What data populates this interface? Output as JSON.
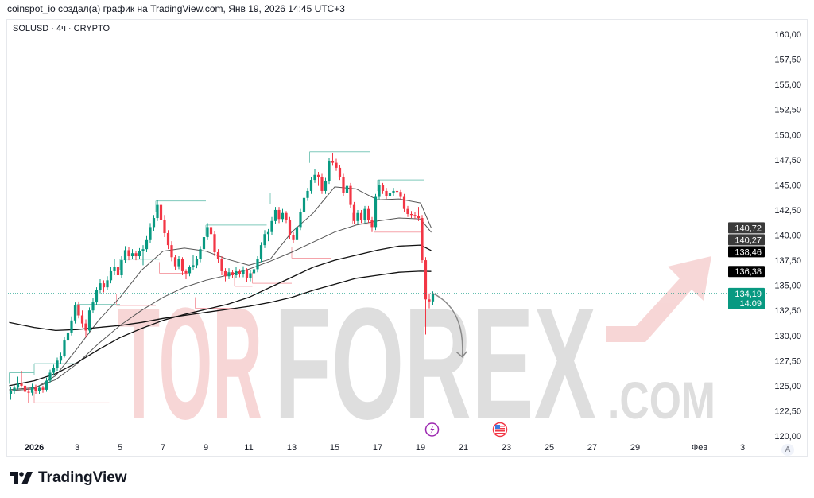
{
  "header": {
    "attribution": "coinspot_io создал(а) график на TradingView.com, Янв 19, 2026 14:45 UTC+3"
  },
  "symbol": {
    "label": "SOLUSD · 4ч · CRYPTO"
  },
  "footer": {
    "logo_text": "TradingView"
  },
  "auto_scale_button": "A",
  "watermark": {
    "text_a": "TOR",
    "text_b": "FOREX",
    ".com": ".COM",
    "color_a": "#f6d0d0",
    "color_b": "#d9d9d9"
  },
  "colors": {
    "up": "#089981",
    "down": "#f23645",
    "ma_fast": "#555555",
    "ma_slow": "#111111",
    "last_price": "#089981",
    "pivot_high": "#7fc9bb",
    "pivot_low": "#f5a3aa"
  },
  "chart_data": {
    "type": "candlestick",
    "interval": "4h",
    "first_candle": "2025-12-30T20:00",
    "ylim": [
      120,
      160
    ],
    "y_ticks": [
      "160,00",
      "157,50",
      "155,00",
      "152,50",
      "150,00",
      "147,50",
      "145,00",
      "142,50",
      "140,00",
      "137,50",
      "135,00",
      "132,50",
      "130,00",
      "127,50",
      "125,00",
      "122,50",
      "120,00"
    ],
    "x_ticks": [
      {
        "date": "2026-01-01",
        "label": "2026"
      },
      {
        "date": "2026-01-03",
        "label": "3"
      },
      {
        "date": "2026-01-05",
        "label": "5"
      },
      {
        "date": "2026-01-07",
        "label": "7"
      },
      {
        "date": "2026-01-09",
        "label": "9"
      },
      {
        "date": "2026-01-11",
        "label": "11"
      },
      {
        "date": "2026-01-13",
        "label": "13"
      },
      {
        "date": "2026-01-15",
        "label": "15"
      },
      {
        "date": "2026-01-17",
        "label": "17"
      },
      {
        "date": "2026-01-19",
        "label": "19"
      },
      {
        "date": "2026-01-21",
        "label": "21"
      },
      {
        "date": "2026-01-23",
        "label": "23"
      },
      {
        "date": "2026-01-25",
        "label": "25"
      },
      {
        "date": "2026-01-27",
        "label": "27"
      },
      {
        "date": "2026-01-29",
        "label": "29"
      },
      {
        "date": "2026-02-01",
        "label": "Фев"
      },
      {
        "date": "2026-02-03",
        "label": "3"
      }
    ],
    "ohlc": [
      [
        124.2,
        124.9,
        123.6,
        124.5
      ],
      [
        124.5,
        125.1,
        124.2,
        124.8
      ],
      [
        124.8,
        125.9,
        124.6,
        125.2
      ],
      [
        125.2,
        126.5,
        124.8,
        125.0
      ],
      [
        125.0,
        125.3,
        124.1,
        124.4
      ],
      [
        124.4,
        124.8,
        123.3,
        124.3
      ],
      [
        124.3,
        125.2,
        124.0,
        124.9
      ],
      [
        124.9,
        125.1,
        124.2,
        124.5
      ],
      [
        124.5,
        125.0,
        124.2,
        124.8
      ],
      [
        124.8,
        125.0,
        124.3,
        124.6
      ],
      [
        124.6,
        125.8,
        124.4,
        125.5
      ],
      [
        125.5,
        126.6,
        125.3,
        126.3
      ],
      [
        126.3,
        127.1,
        126.0,
        126.8
      ],
      [
        126.8,
        127.8,
        126.5,
        127.5
      ],
      [
        127.5,
        128.3,
        127.2,
        128.0
      ],
      [
        128.0,
        129.9,
        127.8,
        129.5
      ],
      [
        129.5,
        130.7,
        129.1,
        130.3
      ],
      [
        130.3,
        131.9,
        130.0,
        131.5
      ],
      [
        131.5,
        133.3,
        131.2,
        133.0
      ],
      [
        133.0,
        133.4,
        131.7,
        132.0
      ],
      [
        132.0,
        132.5,
        130.8,
        131.2
      ],
      [
        131.2,
        131.6,
        129.8,
        130.5
      ],
      [
        130.5,
        132.8,
        130.2,
        132.5
      ],
      [
        132.5,
        133.7,
        132.2,
        133.3
      ],
      [
        133.3,
        134.8,
        133.0,
        134.5
      ],
      [
        134.5,
        135.6,
        134.2,
        135.2
      ],
      [
        135.2,
        135.5,
        134.3,
        134.8
      ],
      [
        134.8,
        135.9,
        134.5,
        135.5
      ],
      [
        135.5,
        136.8,
        135.2,
        136.4
      ],
      [
        136.4,
        137.6,
        136.0,
        136.8
      ],
      [
        136.8,
        137.0,
        135.4,
        136.0
      ],
      [
        136.0,
        137.9,
        135.7,
        137.5
      ],
      [
        137.5,
        138.9,
        137.2,
        138.5
      ],
      [
        138.5,
        138.8,
        137.5,
        137.9
      ],
      [
        137.9,
        138.6,
        137.6,
        138.2
      ],
      [
        138.2,
        138.4,
        137.5,
        137.9
      ],
      [
        137.9,
        138.7,
        137.6,
        138.4
      ],
      [
        138.4,
        139.0,
        137.0,
        138.6
      ],
      [
        138.6,
        139.9,
        138.3,
        139.5
      ],
      [
        139.5,
        141.2,
        139.2,
        140.8
      ],
      [
        140.8,
        142.0,
        140.4,
        141.7
      ],
      [
        141.7,
        143.5,
        141.4,
        143.0
      ],
      [
        143.0,
        143.3,
        141.0,
        141.5
      ],
      [
        141.5,
        142.0,
        139.8,
        140.2
      ],
      [
        140.2,
        140.5,
        138.6,
        139.0
      ],
      [
        139.0,
        139.4,
        137.4,
        137.8
      ],
      [
        137.8,
        138.0,
        136.5,
        136.9
      ],
      [
        136.9,
        137.9,
        136.6,
        137.6
      ],
      [
        137.6,
        137.8,
        136.0,
        136.4
      ],
      [
        136.4,
        136.6,
        135.6,
        136.2
      ],
      [
        136.2,
        137.0,
        135.9,
        136.8
      ],
      [
        136.8,
        138.0,
        136.5,
        137.0
      ],
      [
        137.0,
        137.9,
        136.7,
        137.6
      ],
      [
        137.6,
        138.9,
        137.3,
        138.6
      ],
      [
        138.6,
        140.1,
        138.3,
        139.8
      ],
      [
        139.8,
        141.2,
        139.5,
        140.8
      ],
      [
        140.8,
        141.0,
        139.7,
        140.1
      ],
      [
        140.1,
        140.4,
        137.9,
        138.3
      ],
      [
        138.3,
        138.6,
        137.2,
        137.6
      ],
      [
        137.6,
        137.9,
        136.0,
        136.4
      ],
      [
        136.4,
        136.7,
        135.4,
        135.9
      ],
      [
        135.9,
        136.7,
        135.6,
        136.3
      ],
      [
        136.3,
        136.5,
        135.7,
        136.0
      ],
      [
        136.0,
        136.8,
        135.7,
        136.4
      ],
      [
        136.4,
        136.6,
        135.8,
        136.1
      ],
      [
        136.1,
        136.9,
        135.8,
        136.5
      ],
      [
        136.5,
        136.7,
        135.3,
        135.7
      ],
      [
        135.7,
        136.5,
        135.4,
        136.2
      ],
      [
        136.2,
        136.9,
        135.9,
        136.6
      ],
      [
        136.6,
        137.9,
        136.3,
        137.6
      ],
      [
        137.6,
        139.3,
        137.3,
        139.0
      ],
      [
        139.0,
        140.5,
        138.7,
        140.1
      ],
      [
        140.1,
        140.6,
        139.4,
        140.3
      ],
      [
        140.3,
        141.8,
        140.0,
        141.4
      ],
      [
        141.4,
        142.8,
        141.1,
        142.5
      ],
      [
        142.5,
        142.8,
        141.2,
        141.6
      ],
      [
        141.6,
        142.6,
        141.3,
        142.2
      ],
      [
        142.2,
        142.4,
        141.2,
        141.5
      ],
      [
        141.5,
        141.8,
        139.6,
        140.0
      ],
      [
        140.0,
        140.3,
        139.2,
        139.5
      ],
      [
        139.5,
        141.1,
        139.2,
        140.8
      ],
      [
        140.8,
        142.6,
        140.5,
        142.3
      ],
      [
        142.3,
        144.0,
        142.0,
        143.7
      ],
      [
        143.7,
        144.7,
        143.4,
        144.4
      ],
      [
        144.4,
        145.8,
        144.1,
        145.5
      ],
      [
        145.5,
        146.6,
        145.2,
        146.0
      ],
      [
        146.0,
        146.3,
        144.9,
        145.8
      ],
      [
        145.8,
        146.1,
        144.1,
        144.4
      ],
      [
        144.4,
        145.7,
        144.1,
        145.4
      ],
      [
        145.4,
        147.7,
        145.1,
        147.4
      ],
      [
        147.4,
        148.2,
        146.9,
        147.2
      ],
      [
        147.2,
        147.6,
        146.4,
        146.7
      ],
      [
        146.7,
        147.0,
        145.5,
        145.8
      ],
      [
        145.8,
        146.1,
        143.9,
        144.2
      ],
      [
        144.2,
        145.3,
        143.9,
        144.9
      ],
      [
        144.9,
        145.2,
        142.7,
        143.0
      ],
      [
        143.0,
        143.3,
        141.1,
        141.4
      ],
      [
        141.4,
        142.5,
        141.1,
        142.2
      ],
      [
        142.2,
        142.5,
        141.2,
        141.5
      ],
      [
        141.5,
        142.9,
        141.2,
        142.6
      ],
      [
        142.6,
        142.9,
        141.2,
        141.5
      ],
      [
        141.5,
        141.8,
        140.3,
        140.8
      ],
      [
        140.8,
        144.1,
        140.5,
        143.8
      ],
      [
        143.8,
        145.5,
        143.5,
        145.0
      ],
      [
        145.0,
        145.2,
        144.1,
        144.4
      ],
      [
        144.4,
        144.7,
        143.6,
        143.9
      ],
      [
        143.9,
        144.5,
        143.6,
        144.2
      ],
      [
        144.2,
        144.7,
        143.9,
        144.4
      ],
      [
        144.4,
        144.6,
        144.0,
        144.3
      ],
      [
        144.3,
        144.5,
        143.5,
        143.8
      ],
      [
        143.8,
        144.1,
        142.3,
        142.6
      ],
      [
        142.6,
        142.9,
        141.8,
        142.1
      ],
      [
        142.1,
        142.4,
        141.7,
        142.0
      ],
      [
        142.0,
        142.3,
        141.6,
        141.9
      ],
      [
        141.9,
        142.8,
        141.4,
        141.7
      ],
      [
        141.7,
        142.0,
        137.2,
        137.5
      ],
      [
        137.5,
        137.8,
        130.1,
        133.6
      ],
      [
        133.6,
        134.2,
        132.7,
        133.4
      ],
      [
        133.4,
        134.4,
        133.0,
        134.19
      ]
    ],
    "ma_dates": [
      "2025-12-30T20:00",
      "2026-01-01",
      "2026-01-02",
      "2026-01-03",
      "2026-01-04",
      "2026-01-05",
      "2026-01-06",
      "2026-01-07",
      "2026-01-08",
      "2026-01-09",
      "2026-01-10",
      "2026-01-11",
      "2026-01-12",
      "2026-01-13",
      "2026-01-14",
      "2026-01-15",
      "2026-01-16",
      "2026-01-17",
      "2026-01-18",
      "2026-01-19",
      "2026-01-19T12:00"
    ],
    "moving_averages": [
      {
        "color": "#555555",
        "last": "140,72",
        "values": [
          124.5,
          124.7,
          126.0,
          128.7,
          131.5,
          133.8,
          136.5,
          138.4,
          138.7,
          138.4,
          137.6,
          137.0,
          137.6,
          140.3,
          142.2,
          144.8,
          144.6,
          143.5,
          143.6,
          143.2,
          140.72
        ]
      },
      {
        "color": "#555555",
        "last": "140,27",
        "values": [
          124.6,
          124.8,
          125.6,
          127.2,
          129.2,
          131.0,
          132.5,
          133.8,
          134.8,
          135.5,
          136.0,
          136.6,
          137.4,
          138.3,
          139.3,
          140.3,
          141.0,
          141.4,
          141.7,
          141.6,
          140.27
        ]
      },
      {
        "color": "#111111",
        "last": "138,46",
        "values": [
          125.0,
          125.5,
          126.2,
          127.3,
          128.6,
          129.8,
          130.7,
          131.5,
          132.1,
          132.6,
          133.1,
          133.8,
          134.8,
          135.8,
          136.8,
          137.5,
          138.0,
          138.5,
          138.9,
          139.0,
          138.46
        ]
      },
      {
        "color": "#111111",
        "last": "136,38",
        "values": [
          131.3,
          130.8,
          130.5,
          130.6,
          130.8,
          131.0,
          131.3,
          131.7,
          132.0,
          132.3,
          132.6,
          132.9,
          133.3,
          133.8,
          134.5,
          135.1,
          135.7,
          136.0,
          136.3,
          136.4,
          136.38
        ]
      }
    ],
    "pivot_levels": [
      {
        "kind": "high",
        "price": 126.3,
        "from": "2025-12-30T20:00",
        "to": "2026-01-01"
      },
      {
        "kind": "high",
        "price": 127.2,
        "from": "2026-01-01",
        "to": "2026-01-03"
      },
      {
        "kind": "low",
        "price": 123.3,
        "from": "2026-01-01",
        "to": "2026-01-04T12:00"
      },
      {
        "kind": "high",
        "price": 133.1,
        "from": "2026-01-03",
        "to": "2026-01-05"
      },
      {
        "kind": "low",
        "price": 133.0,
        "from": "2026-01-04T20:00",
        "to": "2026-01-06T16:00"
      },
      {
        "kind": "high",
        "price": 137.6,
        "from": "2026-01-05",
        "to": "2026-01-06T20:00"
      },
      {
        "kind": "low",
        "price": 136.2,
        "from": "2026-01-06T20:00",
        "to": "2026-01-08T04:00"
      },
      {
        "kind": "high",
        "price": 143.4,
        "from": "2026-01-06T16:00",
        "to": "2026-01-09T00:00"
      },
      {
        "kind": "low",
        "price": 132.7,
        "from": "2026-01-08T12:00",
        "to": "2026-01-10T08:00"
      },
      {
        "kind": "high",
        "price": 141.0,
        "from": "2026-01-09T00:00",
        "to": "2026-01-11T20:00"
      },
      {
        "kind": "low",
        "price": 134.9,
        "from": "2026-01-10T08:00",
        "to": "2026-01-11T04:00"
      },
      {
        "kind": "low",
        "price": 135.2,
        "from": "2026-01-11T04:00",
        "to": "2026-01-13T00:00"
      },
      {
        "kind": "high",
        "price": 144.2,
        "from": "2026-01-12T00:00",
        "to": "2026-01-13T16:00"
      },
      {
        "kind": "low",
        "price": 137.7,
        "from": "2026-01-13T00:00",
        "to": "2026-01-14T20:00"
      },
      {
        "kind": "high",
        "price": 148.3,
        "from": "2026-01-13T20:00",
        "to": "2026-01-16T16:00"
      },
      {
        "kind": "low",
        "price": 141.1,
        "from": "2026-01-15T20:00",
        "to": "2026-01-17T00:00"
      },
      {
        "kind": "high",
        "price": 145.5,
        "from": "2026-01-17T00:00",
        "to": "2026-01-19T04:00"
      },
      {
        "kind": "low",
        "price": 140.3,
        "from": "2026-01-16T20:00",
        "to": "2026-01-19T00:00"
      }
    ],
    "last_price": {
      "value": "134,19",
      "countdown": "14:09"
    },
    "annotation_arrow": {
      "from": {
        "date": "2026-01-19T12:00",
        "price": 134.2
      },
      "to": {
        "date": "2026-01-20T12:00",
        "price": 128.5
      }
    },
    "events": [
      {
        "date": "2026-01-19T12:00",
        "icon": "lightning-icon",
        "color": "#9c27b0"
      },
      {
        "date": "2026-01-22T16:00",
        "icon": "us-flag-icon",
        "color": "#f23645"
      }
    ],
    "grid": false
  }
}
